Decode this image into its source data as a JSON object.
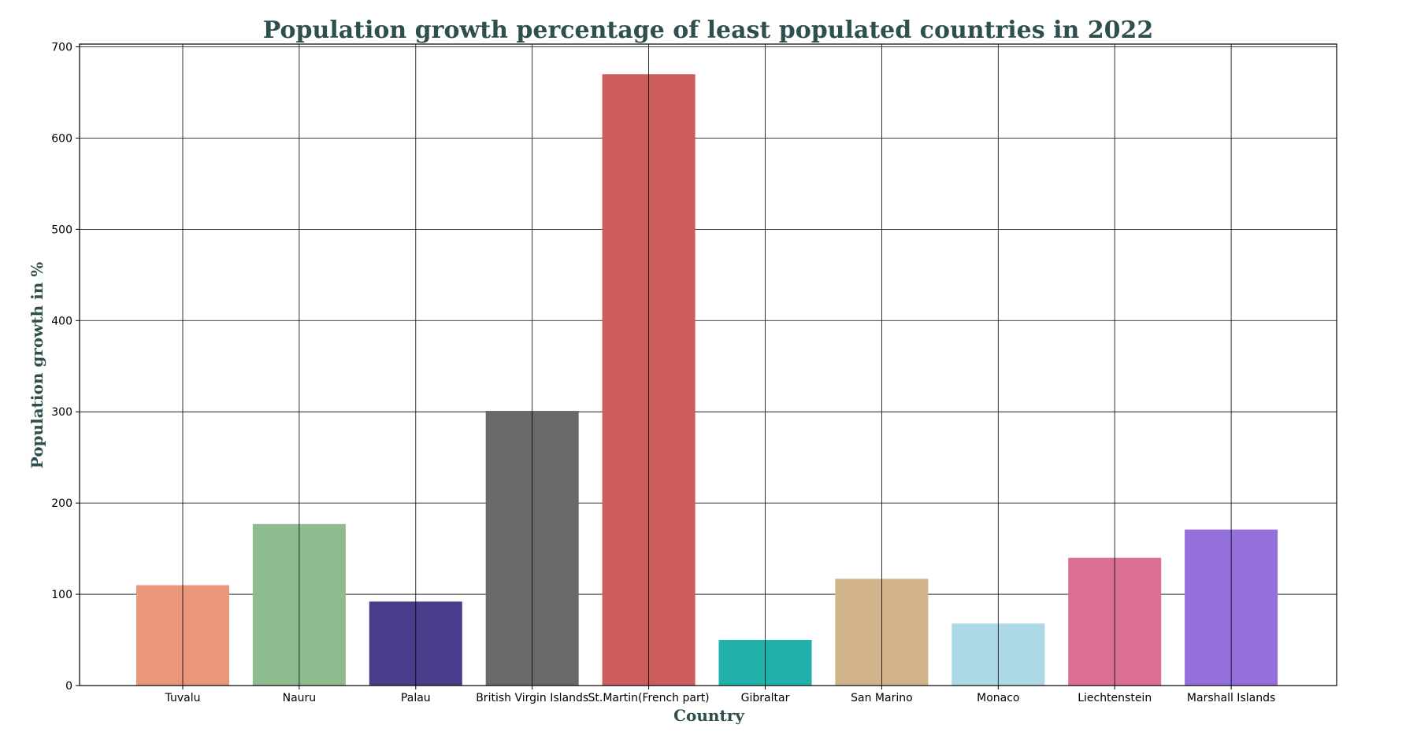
{
  "chart_data": {
    "type": "bar",
    "title": "Population growth percentage of least populated countries in 2022",
    "xlabel": "Country",
    "ylabel": "Population growth in %",
    "categories": [
      "Tuvalu",
      "Nauru",
      "Palau",
      "British Virgin Islands",
      "St.Martin(French part)",
      "Gibraltar",
      "San Marino",
      "Monaco",
      "Liechtenstein",
      "Marshall Islands"
    ],
    "values": [
      110,
      177,
      92,
      301,
      670,
      50,
      117,
      68,
      140,
      171
    ],
    "colors": [
      "#E9967A",
      "#8FBC8F",
      "#483D8B",
      "#696969",
      "#CD5C5C",
      "#20B2AA",
      "#D2B48C",
      "#ADD8E6",
      "#DB7093",
      "#9370DB"
    ],
    "ylim": [
      0,
      703
    ],
    "yticks": [
      0,
      100,
      200,
      300,
      400,
      500,
      600,
      700
    ],
    "grid": true,
    "legend": "none",
    "title_color": "#2F4F4F"
  }
}
